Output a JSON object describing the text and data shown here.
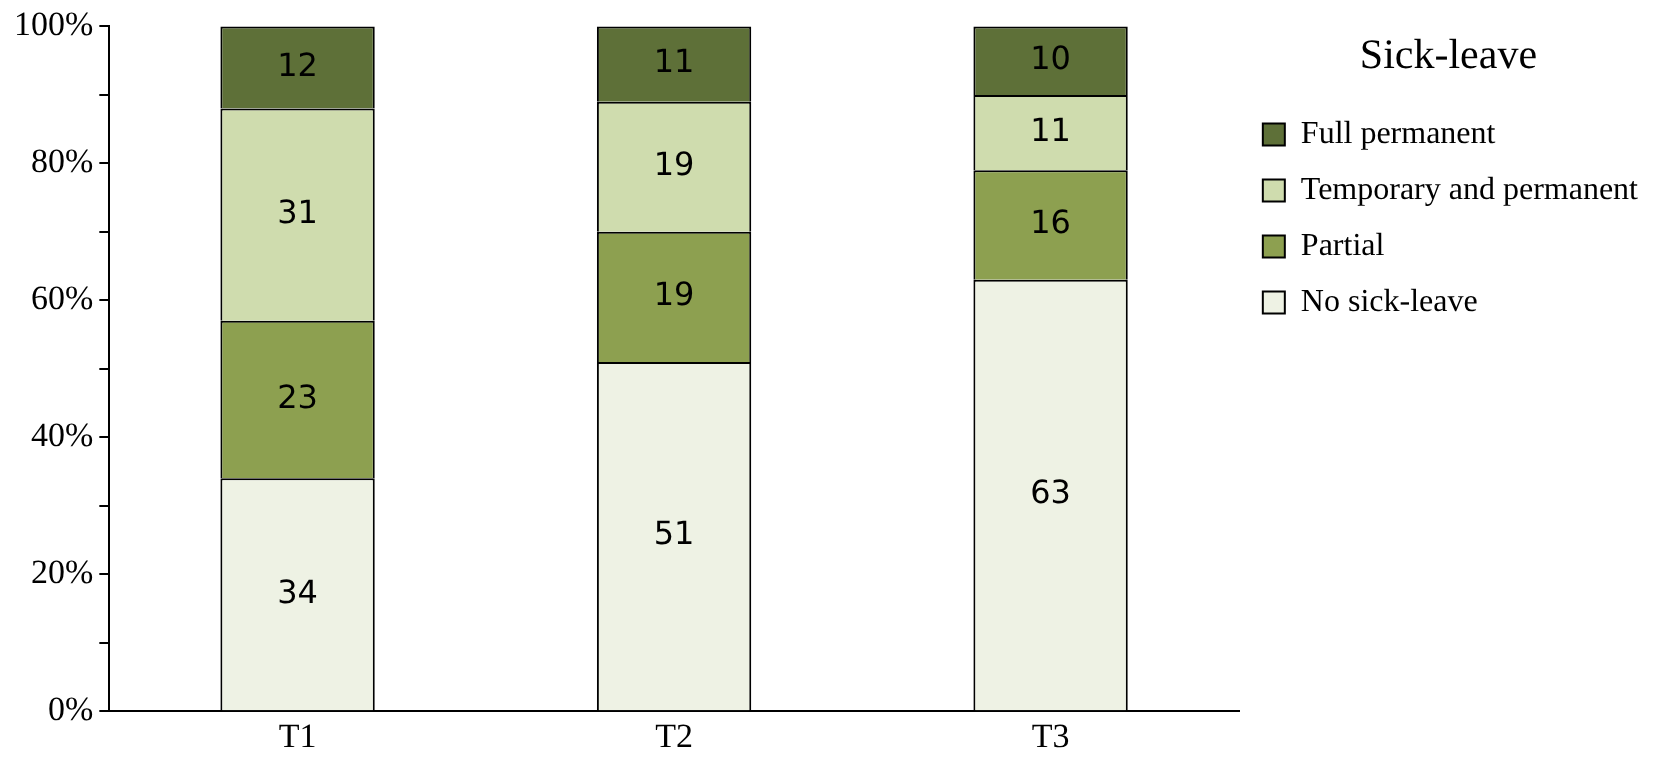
{
  "chart_data": {
    "type": "bar",
    "stacked": true,
    "legend_title": "Sick-leave",
    "legend": "right",
    "grid": false,
    "data_labels": true,
    "categories": [
      "T1",
      "T2",
      "T3"
    ],
    "ylim": [
      0,
      100
    ],
    "yticks": [
      {
        "value": 0,
        "label": "0%"
      },
      {
        "value": 10,
        "label": null
      },
      {
        "value": 20,
        "label": "20%"
      },
      {
        "value": 30,
        "label": null
      },
      {
        "value": 40,
        "label": "40%"
      },
      {
        "value": 50,
        "label": null
      },
      {
        "value": 60,
        "label": "60%"
      },
      {
        "value": 70,
        "label": null
      },
      {
        "value": 80,
        "label": "80%"
      },
      {
        "value": 90,
        "label": null
      },
      {
        "value": 100,
        "label": "100%"
      }
    ],
    "series": [
      {
        "name": "No sick-leave",
        "color": "#eef2e4",
        "values": [
          34,
          51,
          63
        ]
      },
      {
        "name": "Partial",
        "color": "#8da050",
        "values": [
          23,
          19,
          16
        ]
      },
      {
        "name": "Temporary and permanent",
        "color": "#cfdcae",
        "values": [
          31,
          19,
          11
        ]
      },
      {
        "name": "Full permanent",
        "color": "#5e7038",
        "values": [
          12,
          11,
          10
        ]
      }
    ]
  }
}
